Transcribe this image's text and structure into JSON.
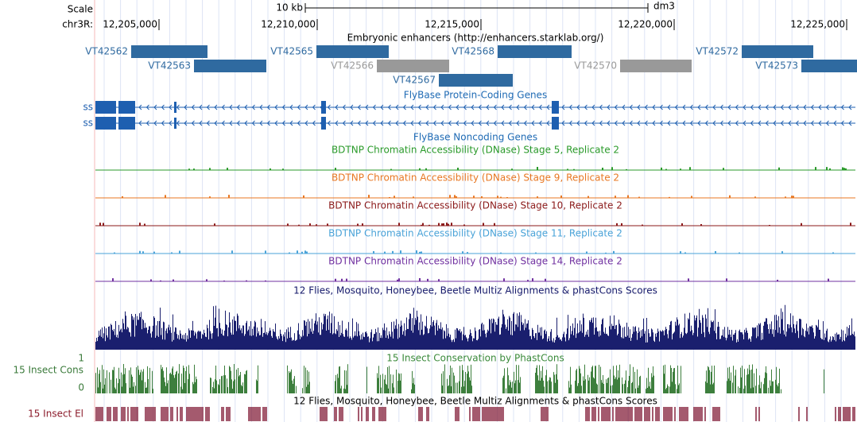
{
  "ruler": {
    "scale": "Scale",
    "scale_bar": "10 kb",
    "assembly": "dm3",
    "chrom": "chr3R:",
    "ticks": [
      "12,205,000",
      "12,210,000",
      "12,215,000",
      "12,220,000",
      "12,225,000"
    ]
  },
  "tracks": {
    "enhancers": {
      "title": "Embryonic enhancers (http://enhancers.starklab.org/)",
      "items": [
        "VT42562",
        "VT42563",
        "VT42565",
        "VT42566",
        "VT42567",
        "VT42568",
        "VT42570",
        "VT42572",
        "VT42573"
      ]
    },
    "genes": {
      "title": "FlyBase Protein-Coding Genes",
      "rows": [
        "ss",
        "ss"
      ]
    },
    "noncoding": {
      "title": "FlyBase Noncoding Genes"
    },
    "dnase": [
      "BDTNP Chromatin Accessibility (DNase) Stage 5, Replicate 2",
      "BDTNP Chromatin Accessibility (DNase) Stage 9, Replicate 2",
      "BDTNP Chromatin Accessibility (DNase) Stage 10, Replicate 2",
      "BDTNP Chromatin Accessibility (DNase) Stage 11, Replicate 2",
      "BDTNP Chromatin Accessibility (DNase) Stage 14, Replicate 2"
    ],
    "multiz": {
      "title": "12 Flies, Mosquito, Honeybee, Beetle Multiz Alignments & phastCons Scores"
    },
    "phastcons": {
      "title": "15 Insect Conservation by PhastCons",
      "label": "15 Insect Cons",
      "ymax": "1",
      "ymin": "0"
    },
    "elements": {
      "title": "12 Flies, Mosquito, Honeybee, Beetle Multiz Alignments & phastCons Scores",
      "label": "15 Insect El"
    }
  }
}
